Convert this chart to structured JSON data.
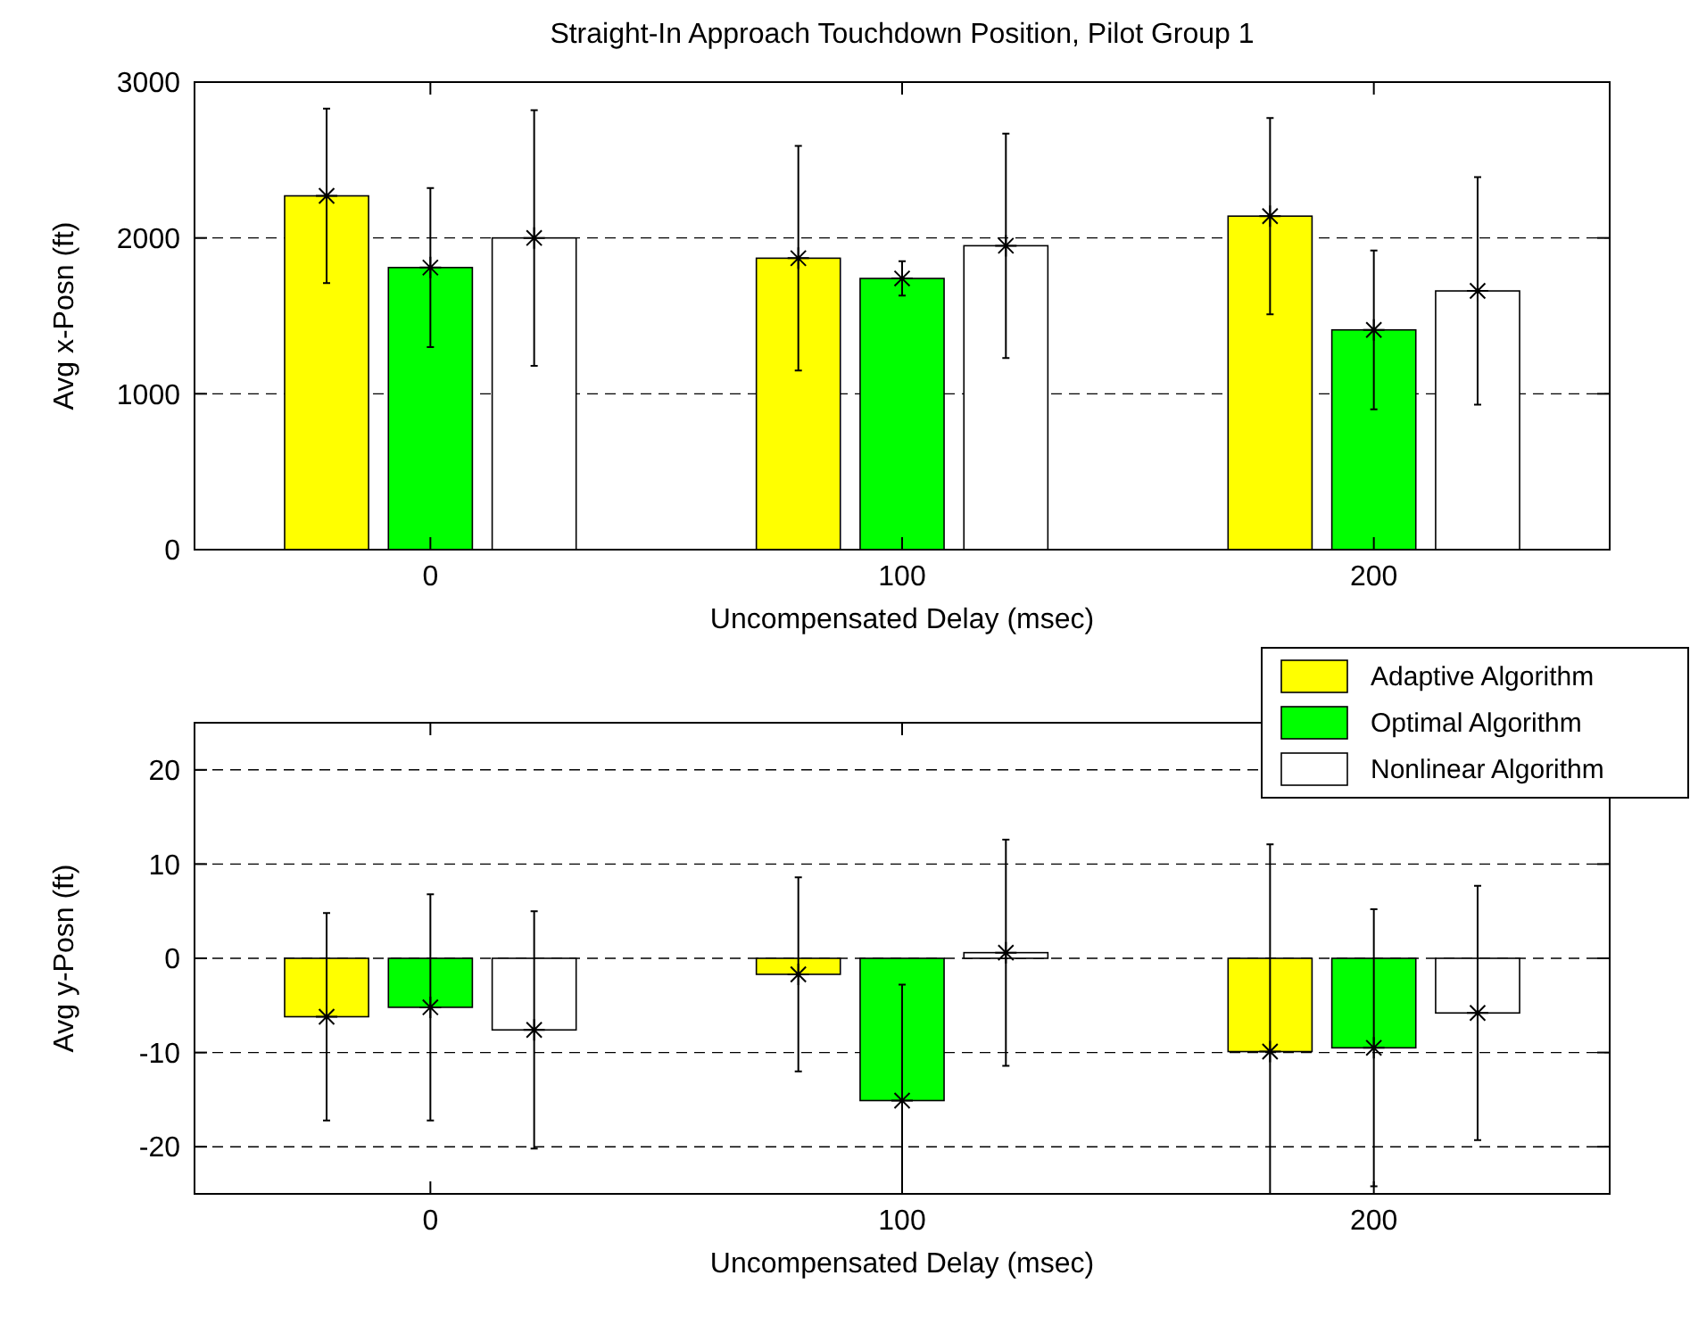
{
  "chart_data": [
    {
      "type": "bar",
      "title": "Straight-In Approach Touchdown Position, Pilot Group 1",
      "xlabel": "Uncompensated Delay (msec)",
      "ylabel": "Avg x-Posn (ft)",
      "categories": [
        "0",
        "100",
        "200"
      ],
      "ylim": [
        0,
        3000
      ],
      "yticks": [
        0,
        1000,
        2000,
        3000
      ],
      "grid": "y",
      "line_style": "dashed",
      "marker": "star",
      "series": [
        {
          "color": "#ffff00",
          "values": [
            2270,
            1870,
            2140
          ],
          "errors": [
            560,
            720,
            630
          ]
        },
        {
          "color": "#00ff00",
          "values": [
            1810,
            1740,
            1410
          ],
          "errors": [
            510,
            110,
            510
          ]
        },
        {
          "color": "#ffffff",
          "values": [
            2000,
            1950,
            1660
          ],
          "errors": [
            820,
            720,
            730
          ]
        }
      ]
    },
    {
      "type": "bar",
      "xlabel": "Uncompensated Delay (msec)",
      "ylabel": "Avg y-Posn (ft)",
      "categories": [
        "0",
        "100",
        "200"
      ],
      "ylim": [
        -25,
        25
      ],
      "yticks": [
        -20,
        -10,
        0,
        10,
        20
      ],
      "grid": "y",
      "line_style": "dashed",
      "marker": "star",
      "legend": "top right",
      "series": [
        {
          "name": "Adaptive Algorithm",
          "color": "#ffff00",
          "values": [
            -6.2,
            -1.7,
            -9.9
          ],
          "errors": [
            11,
            10.3,
            [
              -25,
              12.1
            ]
          ]
        },
        {
          "name": "Optimal Algorithm",
          "color": "#00ff00",
          "values": [
            -5.2,
            -15.1,
            -9.5
          ],
          "errors": [
            12,
            [
              -25,
              -2.8
            ],
            14.7
          ]
        },
        {
          "name": "Nonlinear Algorithm",
          "color": "#ffffff",
          "values": [
            -7.6,
            0.6,
            -5.8
          ],
          "errors": [
            12.6,
            12,
            13.5
          ]
        }
      ]
    }
  ]
}
